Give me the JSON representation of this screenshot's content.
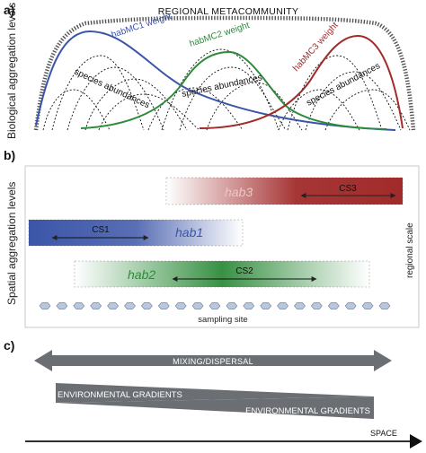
{
  "panels": {
    "a": {
      "label": "a)",
      "y_axis_label": "Biological aggregation levels",
      "title": "REGIONAL METACOMMUNITY",
      "curve_labels": {
        "hab1": "habMC1 weight",
        "hab2": "habMC2 weight",
        "hab3": "habMC3 weight"
      },
      "species_label": "species abundances"
    },
    "b": {
      "label": "b)",
      "y_axis_label": "Spatial aggregation levels",
      "right_label": "regional scale",
      "habitats": {
        "hab1": "hab1",
        "hab2": "hab2",
        "hab3": "hab3"
      },
      "scales": {
        "cs1": "CS1",
        "cs2": "CS2",
        "cs3": "CS3"
      },
      "sampling_label": "sampling site",
      "sampling_site_count": 21
    },
    "c": {
      "label": "c)",
      "mixing_label": "MIXING/DISPERSAL",
      "env_label_top": "ENVIRONMENTAL GRADIENTS",
      "env_label_bottom": "ENVIRONMENTAL GRADIENTS",
      "space_label": "SPACE"
    }
  },
  "colors": {
    "hab1": "#3b55a8",
    "hab2": "#2e8b3a",
    "hab3": "#a12b2b",
    "gray": "#6b6e73",
    "site": "#b9c7dc"
  }
}
